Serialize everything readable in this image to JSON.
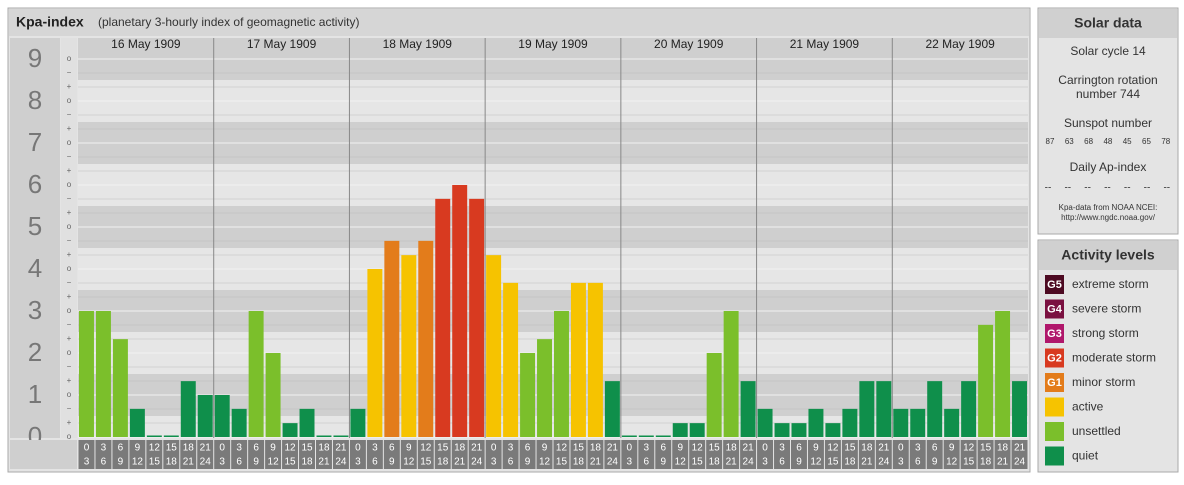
{
  "header": {
    "title": "Kpa-index",
    "subtitle": "(planetary 3-hourly index of geomagnetic activity)"
  },
  "chart_data": {
    "type": "bar",
    "ylim": [
      0,
      9
    ],
    "yticks": [
      0,
      1,
      2,
      3,
      4,
      5,
      6,
      7,
      8,
      9
    ],
    "sub_labels": [
      "−",
      "o",
      "+"
    ],
    "hours": [
      [
        "0",
        "3"
      ],
      [
        "3",
        "6"
      ],
      [
        "6",
        "9"
      ],
      [
        "9",
        "12"
      ],
      [
        "12",
        "15"
      ],
      [
        "15",
        "18"
      ],
      [
        "18",
        "21"
      ],
      [
        "21",
        "24"
      ]
    ],
    "days": [
      {
        "name": "16 May 1909",
        "values": [
          3,
          3,
          2.33,
          0.67,
          0,
          0,
          1.33,
          1
        ],
        "colors": [
          "#7bbf2b",
          "#7bbf2b",
          "#7bbf2b",
          "#0f8f4b",
          "#0f8f4b",
          "#0f8f4b",
          "#0f8f4b",
          "#0f8f4b"
        ]
      },
      {
        "name": "17 May 1909",
        "values": [
          1,
          0.67,
          3,
          2,
          0.33,
          0.67,
          0,
          0
        ],
        "colors": [
          "#0f8f4b",
          "#0f8f4b",
          "#7bbf2b",
          "#7bbf2b",
          "#0f8f4b",
          "#0f8f4b",
          "#0f8f4b",
          "#0f8f4b"
        ]
      },
      {
        "name": "18 May 1909",
        "values": [
          0.67,
          4,
          4.67,
          4.33,
          4.67,
          5.67,
          6,
          5.67
        ],
        "colors": [
          "#0f8f4b",
          "#f6c300",
          "#e37c1b",
          "#f6c300",
          "#e37c1b",
          "#d83a20",
          "#d83a20",
          "#d83a20"
        ]
      },
      {
        "name": "19 May 1909",
        "values": [
          4.33,
          3.67,
          2,
          2.33,
          3,
          3.67,
          3.67,
          1.33
        ],
        "colors": [
          "#f6c300",
          "#f6c300",
          "#7bbf2b",
          "#7bbf2b",
          "#7bbf2b",
          "#f6c300",
          "#f6c300",
          "#0f8f4b"
        ]
      },
      {
        "name": "20 May 1909",
        "values": [
          0,
          0,
          0,
          0.33,
          0.33,
          2,
          3,
          1.33
        ],
        "colors": [
          "#0f8f4b",
          "#0f8f4b",
          "#0f8f4b",
          "#0f8f4b",
          "#0f8f4b",
          "#7bbf2b",
          "#7bbf2b",
          "#0f8f4b"
        ]
      },
      {
        "name": "21 May 1909",
        "values": [
          0.67,
          0.33,
          0.33,
          0.67,
          0.33,
          0.67,
          1.33,
          1.33
        ],
        "colors": [
          "#0f8f4b",
          "#0f8f4b",
          "#0f8f4b",
          "#0f8f4b",
          "#0f8f4b",
          "#0f8f4b",
          "#0f8f4b",
          "#0f8f4b"
        ]
      },
      {
        "name": "22 May 1909",
        "values": [
          0.67,
          0.67,
          1.33,
          0.67,
          1.33,
          2.67,
          3,
          1.33
        ],
        "colors": [
          "#0f8f4b",
          "#0f8f4b",
          "#0f8f4b",
          "#0f8f4b",
          "#0f8f4b",
          "#7bbf2b",
          "#7bbf2b",
          "#0f8f4b"
        ]
      }
    ]
  },
  "solar": {
    "title": "Solar data",
    "cycle": "Solar cycle 14",
    "carrington": [
      "Carrington rotation",
      "number 744"
    ],
    "sunspot_title": "Sunspot number",
    "sunspots": [
      "87",
      "63",
      "68",
      "48",
      "45",
      "65",
      "78"
    ],
    "ap_title": "Daily Ap-index",
    "ap": [
      "--",
      "--",
      "--",
      "--",
      "--",
      "--",
      "--"
    ],
    "source": [
      "Kpa-data from NOAA NCEI:",
      "http://www.ngdc.noaa.gov/"
    ]
  },
  "levels": {
    "title": "Activity levels",
    "items": [
      {
        "badge": "G5",
        "label": "extreme storm",
        "color": "#4d0a22"
      },
      {
        "badge": "G4",
        "label": "severe storm",
        "color": "#7a1040"
      },
      {
        "badge": "G3",
        "label": "strong storm",
        "color": "#b0176b"
      },
      {
        "badge": "G2",
        "label": "moderate storm",
        "color": "#d83a20"
      },
      {
        "badge": "G1",
        "label": "minor storm",
        "color": "#e37c1b"
      },
      {
        "label": "active",
        "color": "#f6c300"
      },
      {
        "label": "unsettled",
        "color": "#7bbf2b"
      },
      {
        "label": "quiet",
        "color": "#0f8f4b"
      }
    ]
  }
}
